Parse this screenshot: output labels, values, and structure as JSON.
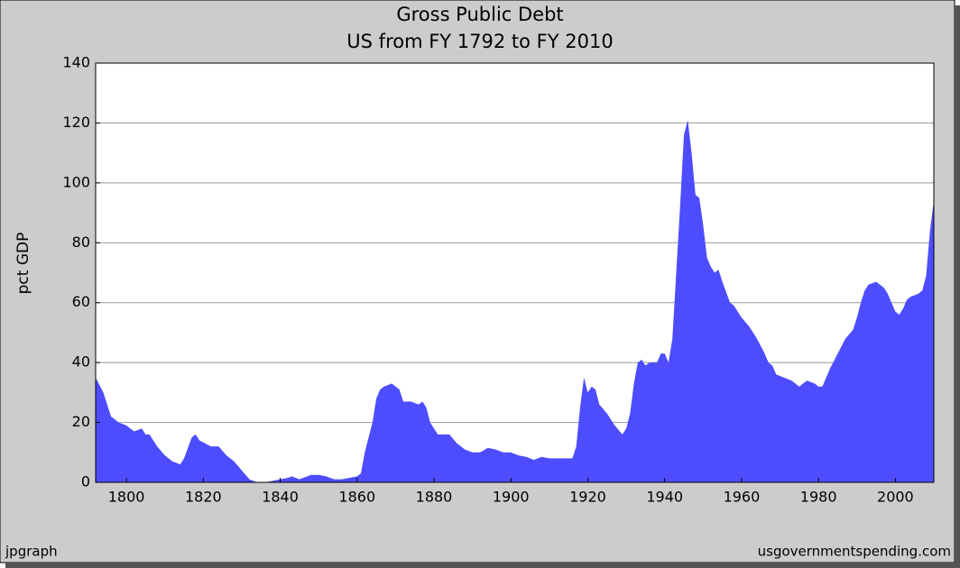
{
  "chart_data": {
    "type": "area",
    "title": "Gross Public Debt",
    "subtitle": "US from FY 1792 to FY 2010",
    "y_label": "pct GDP",
    "footer_left": "jpgraph",
    "footer_right": "usgovernmentspending.com",
    "color": "#4d4dff",
    "grid": true,
    "xlim": [
      1792,
      2010
    ],
    "xticks": [
      1800,
      1820,
      1840,
      1860,
      1880,
      1900,
      1920,
      1940,
      1960,
      1980,
      2000
    ],
    "ylim": [
      0,
      140
    ],
    "yticks": [
      0,
      20,
      40,
      60,
      80,
      100,
      120,
      140
    ],
    "x": [
      1792,
      1794,
      1796,
      1798,
      1800,
      1802,
      1804,
      1805,
      1806,
      1808,
      1810,
      1812,
      1814,
      1815,
      1817,
      1818,
      1819,
      1822,
      1824,
      1826,
      1828,
      1830,
      1832,
      1834,
      1836,
      1838,
      1840,
      1842,
      1843,
      1845,
      1848,
      1850,
      1852,
      1854,
      1856,
      1858,
      1860,
      1861,
      1862,
      1864,
      1865,
      1866,
      1867,
      1869,
      1871,
      1872,
      1874,
      1876,
      1877,
      1878,
      1879,
      1881,
      1884,
      1886,
      1888,
      1890,
      1892,
      1894,
      1896,
      1898,
      1900,
      1902,
      1904,
      1906,
      1908,
      1910,
      1912,
      1914,
      1916,
      1917,
      1918,
      1919,
      1920,
      1921,
      1922,
      1923,
      1925,
      1927,
      1929,
      1930,
      1931,
      1932,
      1933,
      1934,
      1935,
      1936,
      1938,
      1939,
      1940,
      1941,
      1942,
      1943,
      1944,
      1945,
      1946,
      1947,
      1948,
      1949,
      1950,
      1951,
      1952,
      1953,
      1954,
      1955,
      1957,
      1958,
      1960,
      1962,
      1964,
      1966,
      1967,
      1968,
      1969,
      1971,
      1973,
      1975,
      1976,
      1977,
      1979,
      1980,
      1981,
      1983,
      1985,
      1987,
      1989,
      1990,
      1991,
      1992,
      1993,
      1995,
      1997,
      1998,
      1999,
      2000,
      2001,
      2002,
      2003,
      2004,
      2006,
      2007,
      2008,
      2009,
      2010
    ],
    "values": [
      35,
      30,
      22,
      20,
      19,
      17,
      18,
      16,
      16,
      12,
      9,
      7,
      6,
      8,
      15,
      16,
      14,
      12,
      12,
      9,
      7,
      4,
      1,
      0,
      0,
      0.5,
      1,
      1.5,
      2,
      1,
      2.5,
      2.5,
      2,
      1,
      1,
      1.5,
      2,
      3,
      10,
      20,
      28,
      31,
      32,
      33,
      31,
      27,
      27,
      26,
      27,
      25,
      20,
      16,
      16,
      13,
      11,
      10,
      10,
      11.5,
      11,
      10,
      10,
      9,
      8.5,
      7.5,
      8.5,
      8,
      8,
      8,
      8,
      12,
      25,
      35,
      30,
      32,
      31,
      26,
      23,
      19,
      16,
      18,
      23,
      33,
      40,
      41,
      39,
      40,
      40,
      43,
      43,
      40,
      48,
      70,
      92,
      116,
      121,
      110,
      96,
      95,
      86,
      75,
      72,
      70,
      71,
      67,
      60,
      59,
      55,
      52,
      48,
      43,
      40,
      39,
      36,
      35,
      34,
      32,
      33,
      34,
      33,
      32,
      32,
      38,
      43,
      48,
      51,
      55,
      60,
      64,
      66,
      67,
      65,
      63,
      60,
      57,
      56,
      58,
      61,
      62,
      63,
      64,
      69,
      84,
      94
    ]
  }
}
